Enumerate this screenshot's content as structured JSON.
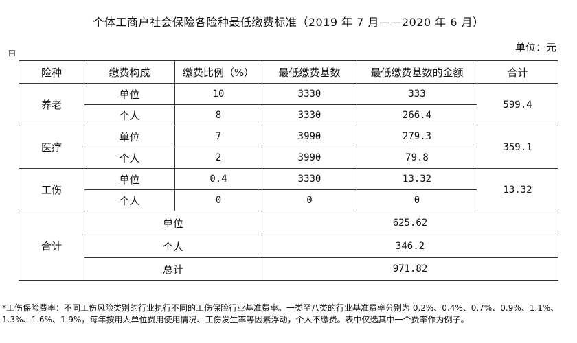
{
  "title": "个体工商户社会保险各险种最低缴费标准（2019 年 7 月——2020 年 6 月）",
  "unit_label": "单位：元",
  "table_handle_icon": "move-table-icon",
  "headers": [
    "险种",
    "缴费构成",
    "缴费比例（%）",
    "最低缴费基数",
    "最低缴费基数的金额",
    "合计"
  ],
  "insurance": [
    {
      "name": "养老",
      "total": "599.4",
      "rows": [
        {
          "component": "单位",
          "ratio": "10",
          "base": "3330",
          "amount": "333"
        },
        {
          "component": "个人",
          "ratio": "8",
          "base": "3330",
          "amount": "266.4"
        }
      ]
    },
    {
      "name": "医疗",
      "total": "359.1",
      "rows": [
        {
          "component": "单位",
          "ratio": "7",
          "base": "3990",
          "amount": "279.3"
        },
        {
          "component": "个人",
          "ratio": "2",
          "base": "3990",
          "amount": "79.8"
        }
      ]
    },
    {
      "name": "工伤",
      "total": "13.32",
      "rows": [
        {
          "component": "单位",
          "ratio": "0.4",
          "base": "3330",
          "amount": "13.32"
        },
        {
          "component": "个人",
          "ratio": "0",
          "base": "0",
          "amount": "0"
        }
      ]
    }
  ],
  "summary": {
    "label": "合计",
    "rows": [
      {
        "label": "单位",
        "value": "625.62"
      },
      {
        "label": "个人",
        "value": "346.2"
      },
      {
        "label": "总计",
        "value": "971.82"
      }
    ]
  },
  "footnote": "*工伤保险费率：不同工伤风险类别的行业执行不同的工伤保险行业基准费率。一类至八类的行业基准费率分别为 0.2%、0.4%、0.7%、0.9%、1.1%、1.3%、1.6%、1.9%，每年按用人单位费用使用情况、工伤发生率等因素浮动，个人不缴费。表中仅选其中一个费率作为例子。"
}
